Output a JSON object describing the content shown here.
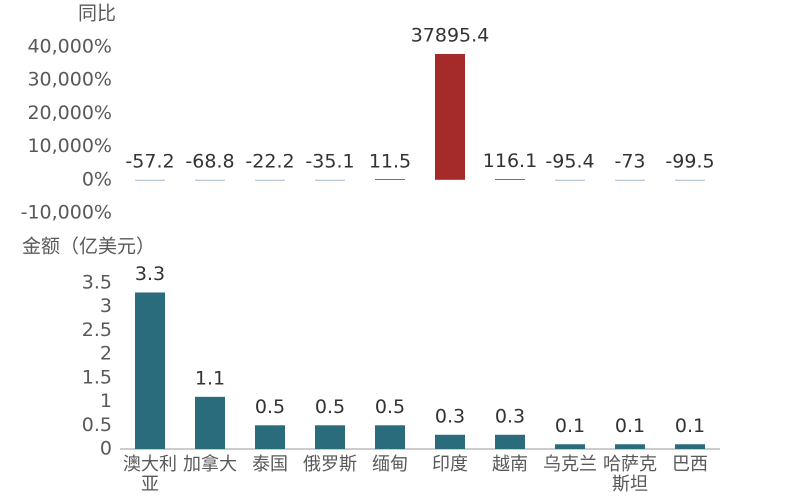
{
  "chart_data": [
    {
      "type": "bar",
      "y_label": "同比",
      "values": [
        -57.2,
        -68.8,
        -22.2,
        -35.1,
        11.5,
        37895.4,
        116.1,
        -95.4,
        -73,
        -99.5
      ],
      "positive_color": "#a52a2a",
      "negative_color": "#8fa9c2",
      "ylim": [
        -10000,
        40000
      ],
      "yticks": [
        {
          "value": -10000,
          "label": "-10,000%"
        },
        {
          "value": 0,
          "label": "0%"
        },
        {
          "value": 10000,
          "label": "10,000%"
        },
        {
          "value": 20000,
          "label": "20,000%"
        },
        {
          "value": 30000,
          "label": "30,000%"
        },
        {
          "value": 40000,
          "label": "40,000%"
        }
      ]
    },
    {
      "type": "bar",
      "y_label": "金额（亿美元）",
      "categories": [
        "澳大利亚",
        "加拿大",
        "泰国",
        "俄罗斯",
        "缅甸",
        "印度",
        "越南",
        "乌克兰",
        "哈萨克斯坦",
        "巴西"
      ],
      "values": [
        3.3,
        1.1,
        0.5,
        0.5,
        0.5,
        0.3,
        0.3,
        0.1,
        0.1,
        0.1
      ],
      "color": "#2a6b7c",
      "ylim": [
        0,
        3.5
      ],
      "yticks": [
        0,
        0.5,
        1,
        1.5,
        2,
        2.5,
        3,
        3.5
      ]
    }
  ]
}
